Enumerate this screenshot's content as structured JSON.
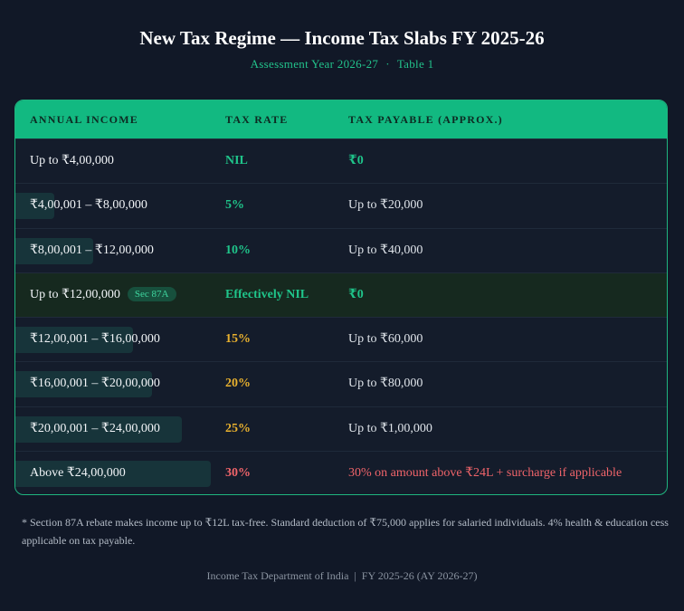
{
  "header": {
    "title": "New Tax Regime — Income Tax Slabs FY 2025-26",
    "assessment_year": "Assessment Year 2026-27",
    "separator": "·",
    "table_label": "Table 1"
  },
  "table": {
    "columns": [
      "ANNUAL INCOME",
      "TAX RATE",
      "TAX PAYABLE (APPROX.)"
    ],
    "rows": [
      {
        "income": "Up to ₹4,00,000",
        "rate": "NIL",
        "payable": "₹0",
        "badge": "",
        "bar_fraction": 0
      },
      {
        "income": "₹4,00,001 – ₹8,00,000",
        "rate": "5%",
        "payable": "Up to ₹20,000",
        "badge": "",
        "bar_fraction": 0.2
      },
      {
        "income": "₹8,00,001 – ₹12,00,000",
        "rate": "10%",
        "payable": "Up to ₹40,000",
        "badge": "",
        "bar_fraction": 0.4
      },
      {
        "income": "Up to ₹12,00,000",
        "rate": "Effectively NIL",
        "payable": "₹0",
        "badge": "Sec 87A",
        "bar_fraction": 0
      },
      {
        "income": "₹12,00,001 – ₹16,00,000",
        "rate": "15%",
        "payable": "Up to ₹60,000",
        "badge": "",
        "bar_fraction": 0.6
      },
      {
        "income": "₹16,00,001 – ₹20,00,000",
        "rate": "20%",
        "payable": "Up to ₹80,000",
        "badge": "",
        "bar_fraction": 0.7
      },
      {
        "income": "₹20,00,001 – ₹24,00,000",
        "rate": "25%",
        "payable": "Up to ₹1,00,000",
        "badge": "",
        "bar_fraction": 0.85
      },
      {
        "income": "Above ₹24,00,000",
        "rate": "30%",
        "payable": "30% on amount above ₹24L + surcharge if applicable",
        "badge": "",
        "bar_fraction": 1.0
      }
    ]
  },
  "footnote": "* Section 87A rebate makes income up to ₹12L tax-free. Standard deduction of ₹75,000 applies for salaried individuals. 4% health & education cess applicable on tax payable.",
  "footer": "Income Tax Department of India  |  FY 2025-26 (AY 2026-27)",
  "colors": {
    "accent": "#12b981",
    "rate_green": "#1fc48a",
    "rate_amber": "#e9b12e",
    "rate_red": "#f0646a",
    "background": "#111827"
  }
}
